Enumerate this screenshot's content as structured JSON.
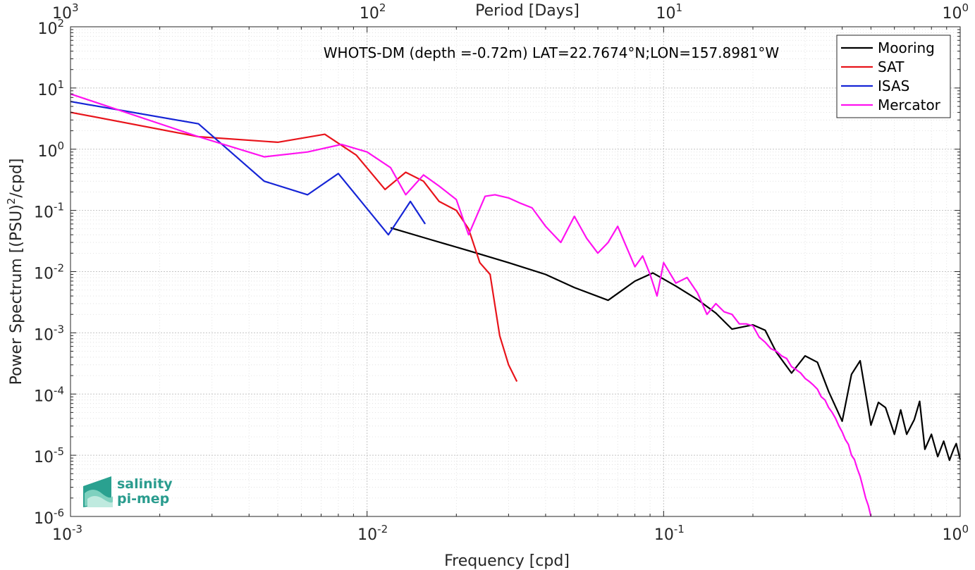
{
  "chart_data": {
    "type": "line",
    "title": "WHOTS-DM (depth =-0.72m) LAT=22.7674°N;LON=157.8981°W",
    "xlabel": "Frequency [cpd]",
    "ylabel": "Power Spectrum [(PSU)",
    "ylabel_sup": "2",
    "ylabel_tail": "/cpd]",
    "top_xlabel": "Period [Days]",
    "x_scale": "log",
    "y_scale": "log",
    "xlim": [
      0.001,
      1
    ],
    "ylim": [
      1e-06,
      100
    ],
    "grid": true,
    "legend_position": "top-right",
    "x_ticks": [
      {
        "value": 0.001,
        "base": "10",
        "exp": "-3"
      },
      {
        "value": 0.01,
        "base": "10",
        "exp": "-2"
      },
      {
        "value": 0.1,
        "base": "10",
        "exp": "-1"
      },
      {
        "value": 1,
        "base": "10",
        "exp": "0"
      }
    ],
    "top_ticks": [
      {
        "value": 0.001,
        "base": "10",
        "exp": "3"
      },
      {
        "value": 0.01,
        "base": "10",
        "exp": "2"
      },
      {
        "value": 0.1,
        "base": "10",
        "exp": "1"
      },
      {
        "value": 1,
        "base": "10",
        "exp": "0"
      }
    ],
    "y_ticks": [
      {
        "value": 100,
        "base": "10",
        "exp": "2"
      },
      {
        "value": 10,
        "base": "10",
        "exp": "1"
      },
      {
        "value": 1,
        "base": "10",
        "exp": "0"
      },
      {
        "value": 0.1,
        "base": "10",
        "exp": "-1"
      },
      {
        "value": 0.01,
        "base": "10",
        "exp": "-2"
      },
      {
        "value": 0.001,
        "base": "10",
        "exp": "-3"
      },
      {
        "value": 0.0001,
        "base": "10",
        "exp": "-4"
      },
      {
        "value": 1e-05,
        "base": "10",
        "exp": "-5"
      },
      {
        "value": 1e-06,
        "base": "10",
        "exp": "-6"
      }
    ],
    "series": [
      {
        "name": "Mooring",
        "color": "#000000",
        "x": [
          0.012,
          0.0165,
          0.022,
          0.03,
          0.04,
          0.05,
          0.065,
          0.08,
          0.092,
          0.11,
          0.13,
          0.15,
          0.17,
          0.2,
          0.22,
          0.24,
          0.27,
          0.3,
          0.33,
          0.36,
          0.4,
          0.43,
          0.46,
          0.5,
          0.53,
          0.56,
          0.6,
          0.63,
          0.66,
          0.7,
          0.73,
          0.76,
          0.8,
          0.84,
          0.88,
          0.92,
          0.95,
          0.97,
          1.0
        ],
        "y": [
          0.052,
          0.033,
          0.022,
          0.014,
          0.009,
          0.0055,
          0.0034,
          0.007,
          0.0095,
          0.0058,
          0.0035,
          0.0021,
          0.00115,
          0.00135,
          0.0011,
          0.00048,
          0.00022,
          0.00042,
          0.00033,
          0.00011,
          3.6e-05,
          0.00021,
          0.00035,
          3.1e-05,
          7.3e-05,
          6e-05,
          2.2e-05,
          5.5e-05,
          2.2e-05,
          3.8e-05,
          7.6e-05,
          1.25e-05,
          2.2e-05,
          9.5e-06,
          1.7e-05,
          8.3e-06,
          1.25e-05,
          1.55e-05,
          8.5e-06
        ]
      },
      {
        "name": "SAT",
        "color": "#e8141b",
        "x": [
          0.001,
          0.0027,
          0.005,
          0.0072,
          0.0092,
          0.0115,
          0.0135,
          0.0155,
          0.0175,
          0.02,
          0.022,
          0.024,
          0.026,
          0.028,
          0.03,
          0.032
        ],
        "y": [
          4,
          1.6,
          1.3,
          1.75,
          0.8,
          0.22,
          0.42,
          0.3,
          0.14,
          0.1,
          0.05,
          0.014,
          0.009,
          0.0009,
          0.0003,
          0.00016
        ]
      },
      {
        "name": "ISAS",
        "color": "#1625d6",
        "x": [
          0.001,
          0.0027,
          0.0045,
          0.0063,
          0.008,
          0.0118,
          0.014,
          0.0157
        ],
        "y": [
          6,
          2.6,
          0.3,
          0.18,
          0.4,
          0.04,
          0.14,
          0.06
        ]
      },
      {
        "name": "Mercator",
        "color": "#ff12f0",
        "x": [
          0.001,
          0.0027,
          0.0045,
          0.0063,
          0.0082,
          0.01,
          0.012,
          0.0135,
          0.0155,
          0.0175,
          0.02,
          0.022,
          0.025,
          0.027,
          0.03,
          0.033,
          0.036,
          0.04,
          0.045,
          0.05,
          0.055,
          0.06,
          0.065,
          0.07,
          0.075,
          0.08,
          0.085,
          0.09,
          0.095,
          0.1,
          0.11,
          0.12,
          0.13,
          0.14,
          0.15,
          0.16,
          0.17,
          0.18,
          0.19,
          0.2,
          0.21,
          0.22,
          0.23,
          0.24,
          0.25,
          0.26,
          0.27,
          0.28,
          0.29,
          0.3,
          0.31,
          0.32,
          0.33,
          0.34,
          0.35,
          0.36,
          0.37,
          0.38,
          0.39,
          0.4,
          0.41,
          0.42,
          0.43,
          0.44,
          0.45,
          0.46,
          0.47,
          0.48,
          0.49,
          0.5
        ],
        "y": [
          8,
          1.6,
          0.75,
          0.9,
          1.2,
          0.9,
          0.5,
          0.18,
          0.38,
          0.25,
          0.15,
          0.04,
          0.17,
          0.18,
          0.16,
          0.13,
          0.11,
          0.055,
          0.03,
          0.08,
          0.035,
          0.02,
          0.03,
          0.055,
          0.025,
          0.012,
          0.018,
          0.009,
          0.004,
          0.014,
          0.0065,
          0.008,
          0.0045,
          0.002,
          0.003,
          0.0022,
          0.002,
          0.0014,
          0.0014,
          0.0013,
          0.00085,
          0.0007,
          0.00055,
          0.0005,
          0.00042,
          0.00038,
          0.00028,
          0.00025,
          0.00022,
          0.00018,
          0.00016,
          0.00014,
          0.00012,
          9e-05,
          8e-05,
          6e-05,
          5e-05,
          4e-05,
          3e-05,
          2.4e-05,
          1.8e-05,
          1.5e-05,
          1e-05,
          8.5e-06,
          6e-06,
          4.5e-06,
          3e-06,
          2e-06,
          1.5e-06,
          1e-06
        ]
      }
    ]
  },
  "legend": {
    "items": [
      {
        "label": "Mooring",
        "color": "#000000"
      },
      {
        "label": "SAT",
        "color": "#e8141b"
      },
      {
        "label": "ISAS",
        "color": "#1625d6"
      },
      {
        "label": "Mercator",
        "color": "#ff12f0"
      }
    ]
  },
  "logo": {
    "line1": "salinity",
    "line2": "pi-mep"
  }
}
